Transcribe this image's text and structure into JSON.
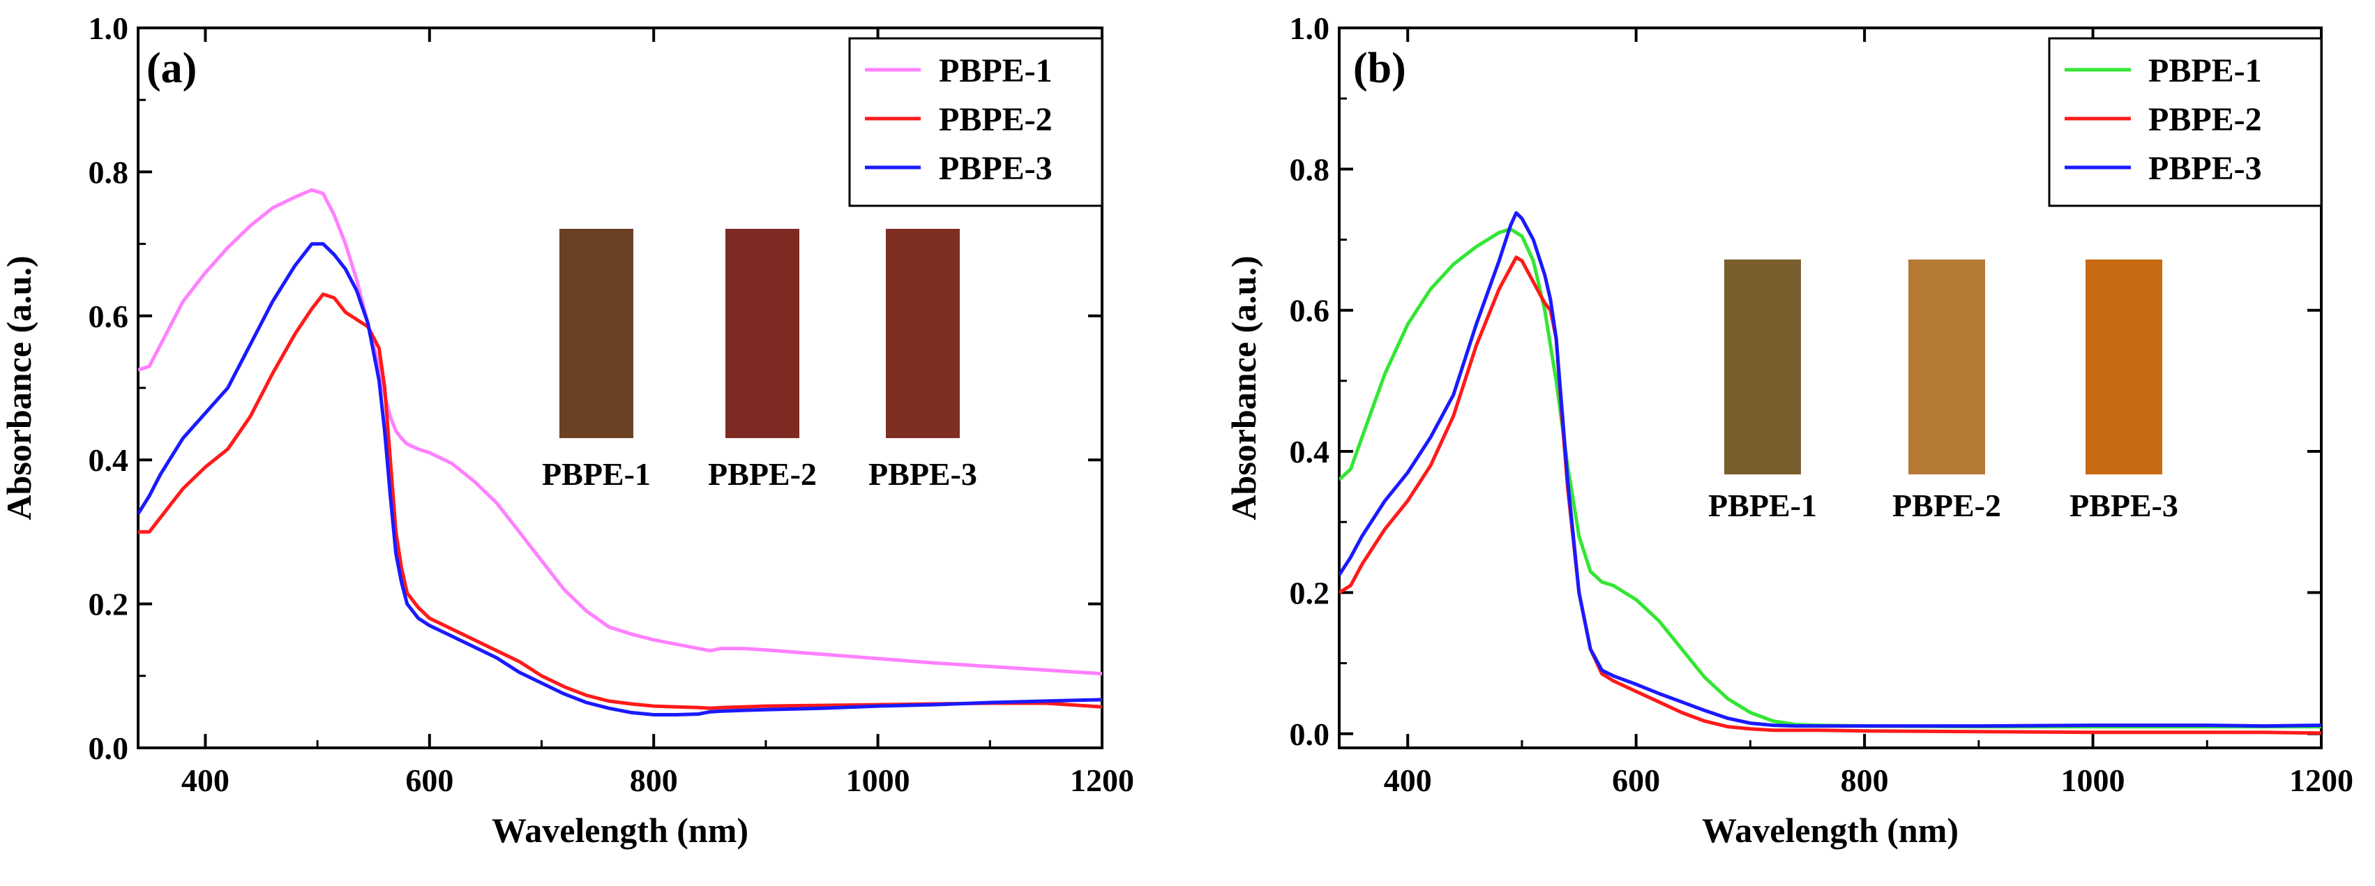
{
  "chart_data": [
    {
      "type": "line",
      "panel_label": "(a)",
      "xlabel": "Wavelength (nm)",
      "ylabel": "Absorbance (a.u.)",
      "xlim": [
        340,
        1200
      ],
      "ylim": [
        0,
        1.0
      ],
      "xticks": [
        400,
        600,
        800,
        1000,
        1200
      ],
      "yticks": [
        0.0,
        0.2,
        0.4,
        0.6,
        0.8,
        1.0
      ],
      "ytick_labels": [
        "0.0",
        "0.2",
        "0.4",
        "0.6",
        "0.8",
        "1.0"
      ],
      "legend_position": "top-right",
      "series": [
        {
          "name": "PBPE-1",
          "color": "#ff80ff",
          "x": [
            340,
            350,
            360,
            380,
            400,
            420,
            440,
            460,
            480,
            495,
            505,
            515,
            525,
            535,
            545,
            555,
            560,
            565,
            570,
            575,
            580,
            590,
            600,
            620,
            640,
            660,
            680,
            700,
            720,
            740,
            760,
            780,
            800,
            820,
            840,
            850,
            860,
            880,
            900,
            950,
            1000,
            1050,
            1100,
            1150,
            1200
          ],
          "y": [
            0.525,
            0.53,
            0.56,
            0.62,
            0.66,
            0.695,
            0.725,
            0.75,
            0.765,
            0.775,
            0.77,
            0.74,
            0.7,
            0.65,
            0.59,
            0.53,
            0.49,
            0.46,
            0.44,
            0.43,
            0.422,
            0.415,
            0.41,
            0.395,
            0.37,
            0.34,
            0.3,
            0.26,
            0.22,
            0.19,
            0.168,
            0.158,
            0.15,
            0.144,
            0.138,
            0.135,
            0.138,
            0.138,
            0.136,
            0.13,
            0.124,
            0.118,
            0.113,
            0.108,
            0.103
          ]
        },
        {
          "name": "PBPE-2",
          "color": "#ff1a1a",
          "x": [
            340,
            350,
            360,
            380,
            400,
            420,
            440,
            460,
            480,
            495,
            505,
            515,
            525,
            535,
            545,
            555,
            560,
            565,
            570,
            575,
            580,
            590,
            600,
            620,
            640,
            660,
            680,
            700,
            720,
            740,
            760,
            780,
            800,
            820,
            840,
            850,
            860,
            880,
            900,
            950,
            1000,
            1050,
            1100,
            1150,
            1200
          ],
          "y": [
            0.3,
            0.3,
            0.32,
            0.36,
            0.39,
            0.415,
            0.46,
            0.52,
            0.575,
            0.61,
            0.63,
            0.625,
            0.605,
            0.595,
            0.585,
            0.555,
            0.5,
            0.4,
            0.3,
            0.25,
            0.215,
            0.195,
            0.18,
            0.165,
            0.15,
            0.135,
            0.12,
            0.1,
            0.085,
            0.073,
            0.065,
            0.061,
            0.058,
            0.057,
            0.056,
            0.055,
            0.056,
            0.057,
            0.058,
            0.059,
            0.06,
            0.061,
            0.062,
            0.062,
            0.057
          ]
        },
        {
          "name": "PBPE-3",
          "color": "#1a1aff",
          "x": [
            340,
            350,
            360,
            380,
            400,
            420,
            440,
            460,
            480,
            495,
            505,
            515,
            525,
            535,
            545,
            555,
            560,
            565,
            570,
            575,
            580,
            590,
            600,
            620,
            640,
            660,
            680,
            700,
            720,
            740,
            760,
            780,
            800,
            820,
            840,
            850,
            860,
            880,
            900,
            950,
            1000,
            1050,
            1100,
            1150,
            1200
          ],
          "y": [
            0.325,
            0.35,
            0.38,
            0.43,
            0.465,
            0.5,
            0.56,
            0.62,
            0.67,
            0.7,
            0.7,
            0.685,
            0.665,
            0.635,
            0.59,
            0.51,
            0.44,
            0.35,
            0.27,
            0.23,
            0.2,
            0.18,
            0.17,
            0.155,
            0.14,
            0.125,
            0.105,
            0.09,
            0.075,
            0.063,
            0.055,
            0.049,
            0.046,
            0.046,
            0.047,
            0.05,
            0.051,
            0.052,
            0.053,
            0.055,
            0.058,
            0.06,
            0.063,
            0.065,
            0.067
          ]
        }
      ],
      "inset_samples": [
        {
          "label": "PBPE-1",
          "color": "#6b4025"
        },
        {
          "label": "PBPE-2",
          "color": "#7d2a22"
        },
        {
          "label": "PBPE-3",
          "color": "#7f2e24"
        }
      ]
    },
    {
      "type": "line",
      "panel_label": "(b)",
      "xlabel": "Wavelength (nm)",
      "ylabel": "Absorbance (a.u.)",
      "xlim": [
        340,
        1200
      ],
      "ylim": [
        -0.02,
        1.0
      ],
      "xticks": [
        400,
        600,
        800,
        1000,
        1200
      ],
      "yticks": [
        0.0,
        0.2,
        0.4,
        0.6,
        0.8,
        1.0
      ],
      "ytick_labels": [
        "0.0",
        "0.2",
        "0.4",
        "0.6",
        "0.8",
        "1.0"
      ],
      "legend_position": "top-right",
      "series": [
        {
          "name": "PBPE-1",
          "color": "#33e633",
          "x": [
            340,
            350,
            360,
            380,
            400,
            420,
            440,
            460,
            480,
            490,
            500,
            510,
            520,
            530,
            540,
            550,
            560,
            570,
            580,
            600,
            620,
            640,
            660,
            680,
            700,
            720,
            740,
            760,
            800,
            900,
            1000,
            1100,
            1150,
            1200
          ],
          "y": [
            0.36,
            0.375,
            0.42,
            0.51,
            0.58,
            0.63,
            0.665,
            0.69,
            0.71,
            0.715,
            0.705,
            0.67,
            0.6,
            0.5,
            0.38,
            0.28,
            0.23,
            0.215,
            0.21,
            0.19,
            0.16,
            0.12,
            0.08,
            0.05,
            0.03,
            0.018,
            0.013,
            0.012,
            0.011,
            0.01,
            0.01,
            0.01,
            0.01,
            0.01
          ]
        },
        {
          "name": "PBPE-2",
          "color": "#ff1a1a",
          "x": [
            340,
            350,
            360,
            380,
            400,
            420,
            440,
            460,
            480,
            490,
            495,
            500,
            510,
            520,
            525,
            530,
            535,
            540,
            550,
            560,
            570,
            580,
            600,
            620,
            640,
            660,
            680,
            700,
            720,
            740,
            760,
            800,
            900,
            1000,
            1100,
            1150,
            1200
          ],
          "y": [
            0.2,
            0.21,
            0.24,
            0.29,
            0.33,
            0.38,
            0.45,
            0.55,
            0.63,
            0.66,
            0.675,
            0.67,
            0.64,
            0.61,
            0.6,
            0.56,
            0.45,
            0.35,
            0.2,
            0.12,
            0.085,
            0.075,
            0.06,
            0.045,
            0.03,
            0.018,
            0.01,
            0.007,
            0.005,
            0.005,
            0.005,
            0.004,
            0.003,
            0.002,
            0.002,
            0.002,
            0.001
          ]
        },
        {
          "name": "PBPE-3",
          "color": "#1a1aff",
          "x": [
            340,
            350,
            360,
            380,
            400,
            420,
            440,
            460,
            480,
            490,
            495,
            500,
            510,
            520,
            525,
            530,
            535,
            540,
            550,
            560,
            570,
            580,
            600,
            620,
            640,
            660,
            680,
            700,
            720,
            740,
            760,
            800,
            900,
            1000,
            1100,
            1150,
            1200
          ],
          "y": [
            0.225,
            0.25,
            0.28,
            0.33,
            0.37,
            0.42,
            0.48,
            0.58,
            0.67,
            0.72,
            0.738,
            0.73,
            0.7,
            0.65,
            0.615,
            0.56,
            0.46,
            0.36,
            0.2,
            0.12,
            0.09,
            0.082,
            0.07,
            0.057,
            0.045,
            0.033,
            0.022,
            0.015,
            0.012,
            0.011,
            0.011,
            0.011,
            0.011,
            0.012,
            0.012,
            0.011,
            0.012
          ]
        }
      ],
      "inset_samples": [
        {
          "label": "PBPE-1",
          "color": "#7a5e2e"
        },
        {
          "label": "PBPE-2",
          "color": "#b57a36"
        },
        {
          "label": "PBPE-3",
          "color": "#c76a12"
        }
      ]
    }
  ]
}
